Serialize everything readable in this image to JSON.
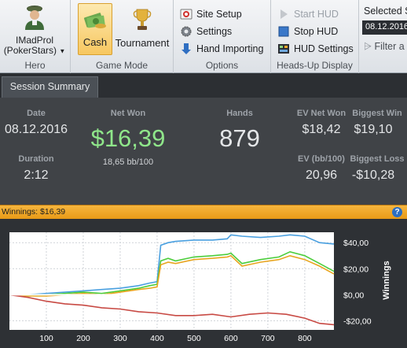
{
  "ribbon": {
    "hero": {
      "name": "IMadProl",
      "site": "(PokerStars)",
      "group_label": "Hero"
    },
    "game_mode": {
      "cash_label": "Cash",
      "tournament_label": "Tournament",
      "group_label": "Game Mode",
      "active": "Cash"
    },
    "options": {
      "site_setup": "Site Setup",
      "settings": "Settings",
      "hand_importing": "Hand Importing",
      "group_label": "Options"
    },
    "hud": {
      "start_hud": "Start HUD",
      "stop_hud": "Stop HUD",
      "hud_settings": "HUD Settings",
      "group_label": "Heads-Up Display"
    },
    "selected": {
      "title": "Selected S",
      "date": "08.12.2016",
      "filter": "Filter a"
    }
  },
  "tabs": [
    {
      "label": "Session Summary",
      "active": true
    }
  ],
  "summary": {
    "date_label": "Date",
    "date_value": "08.12.2016",
    "duration_label": "Duration",
    "duration_value": "2:12",
    "net_won_label": "Net Won",
    "net_won_value": "$16,39",
    "net_won_bb": "18,65 bb/100",
    "hands_label": "Hands",
    "hands_value": "879",
    "ev_net_won_label": "EV Net Won",
    "ev_net_won_value": "$18,42",
    "biggest_win_label": "Biggest Win",
    "biggest_win_value": "$19,10",
    "ev_bb_label": "EV (bb/100)",
    "ev_bb_value": "20,96",
    "biggest_loss_label": "Biggest Loss",
    "biggest_loss_value": "-$10,28"
  },
  "chart_header": {
    "title": "Winnings: $16,39",
    "help": "?"
  },
  "colors": {
    "blue": "#4aa0e0",
    "green": "#4ccd3c",
    "orange": "#e8a51f",
    "red": "#c84a44",
    "zero": "#ffffff",
    "accent": "#f3a92c"
  },
  "chart_data": {
    "type": "line",
    "ylabel": "Winnings",
    "xlim": [
      0,
      879
    ],
    "ylim": [
      -27,
      48
    ],
    "xticks": [
      100,
      200,
      300,
      400,
      500,
      600,
      700,
      800
    ],
    "yticks": [
      40,
      20,
      0,
      -20
    ],
    "ytick_labels": [
      "$40,00",
      "$20,00",
      "$0,00",
      "-$20,00"
    ],
    "grid": true,
    "series": [
      {
        "color_key": "blue",
        "x": [
          0,
          50,
          100,
          150,
          200,
          250,
          300,
          350,
          380,
          400,
          410,
          430,
          450,
          500,
          550,
          590,
          600,
          630,
          680,
          730,
          760,
          800,
          840,
          879
        ],
        "y": [
          0,
          0,
          1,
          2,
          3,
          4,
          5,
          7,
          9,
          10,
          38,
          40,
          41,
          42,
          42,
          43,
          46,
          45,
          44,
          45,
          46,
          45,
          40,
          39
        ]
      },
      {
        "color_key": "green",
        "x": [
          0,
          50,
          100,
          150,
          200,
          250,
          300,
          350,
          380,
          400,
          410,
          430,
          450,
          500,
          550,
          590,
          600,
          630,
          680,
          730,
          760,
          800,
          840,
          879
        ],
        "y": [
          0,
          -1,
          0,
          1,
          2,
          1,
          3,
          5,
          7,
          8,
          26,
          28,
          26,
          29,
          30,
          31,
          32,
          24,
          27,
          29,
          33,
          30,
          24,
          18
        ]
      },
      {
        "color_key": "orange",
        "x": [
          0,
          50,
          100,
          150,
          200,
          250,
          300,
          350,
          380,
          400,
          410,
          430,
          450,
          500,
          550,
          590,
          600,
          630,
          680,
          730,
          760,
          800,
          840,
          879
        ],
        "y": [
          0,
          -1,
          -1,
          0,
          1,
          0,
          2,
          4,
          5,
          6,
          23,
          25,
          24,
          27,
          28,
          29,
          30,
          22,
          25,
          27,
          30,
          27,
          22,
          16
        ]
      },
      {
        "color_key": "red",
        "x": [
          0,
          50,
          100,
          150,
          200,
          250,
          300,
          350,
          400,
          450,
          500,
          550,
          600,
          650,
          700,
          750,
          800,
          840,
          879
        ],
        "y": [
          0,
          -2,
          -5,
          -7,
          -8,
          -10,
          -11,
          -13,
          -14,
          -16,
          -16,
          -15,
          -17,
          -15,
          -14,
          -15,
          -18,
          -22,
          -23
        ]
      },
      {
        "color_key": "zero",
        "x": [
          0,
          879
        ],
        "y": [
          0,
          0
        ]
      }
    ]
  }
}
